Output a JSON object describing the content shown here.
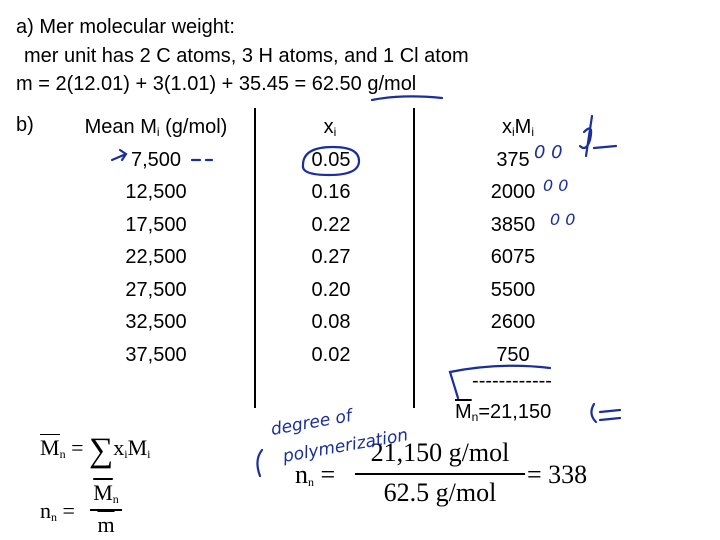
{
  "part_a": {
    "line1": "a)  Mer molecular weight:",
    "line2": "mer unit has 2 C atoms, 3 H atoms, and 1 Cl atom",
    "line3": "m = 2(12.01) + 3(1.01) + 35.45 = 62.50 g/mol"
  },
  "part_b": {
    "label": "b)",
    "headers": {
      "mean": "Mean M",
      "mean_sub": "i",
      "mean_unit": " (g/mol)",
      "x": "x",
      "x_sub": "i",
      "xm": "x",
      "xm_sub1": "i",
      "xm_m": "M",
      "xm_sub2": "i"
    },
    "mean": [
      "7,500",
      "12,500",
      "17,500",
      "22,500",
      "27,500",
      "32,500",
      "37,500"
    ],
    "x": [
      "0.05",
      "0.16",
      "0.22",
      "0.27",
      "0.20",
      "0.08",
      "0.02"
    ],
    "xm": [
      "375",
      "2000",
      "3850",
      "6075",
      "5500",
      "2600",
      "750"
    ],
    "dashes": "------------",
    "mn_result": {
      "M": "M",
      "sub": "n",
      "value": "=21,150"
    }
  },
  "formulas": {
    "f1": {
      "lhs": "M",
      "lhs_sub": "n",
      "eq": " = ",
      "sum": "∑",
      "x": "x",
      "x_sub": "i",
      "m": "M",
      "m_sub": "i"
    },
    "f2": {
      "lhs": "n",
      "lhs_sub": "n",
      "eq": " = ",
      "num": "M",
      "num_sub": "n",
      "den": "m"
    },
    "f3": {
      "lhs": "n",
      "lhs_sub": "n",
      "eq": " = ",
      "num": "21,150 g/mol",
      "den": "62.5 g/mol",
      "result": "= 338"
    }
  },
  "handwriting": {
    "note1": "degree of",
    "note2": "polymerization",
    "zeros1": "0 0",
    "zeros2": "0 0",
    "zeros3": "0 0"
  }
}
